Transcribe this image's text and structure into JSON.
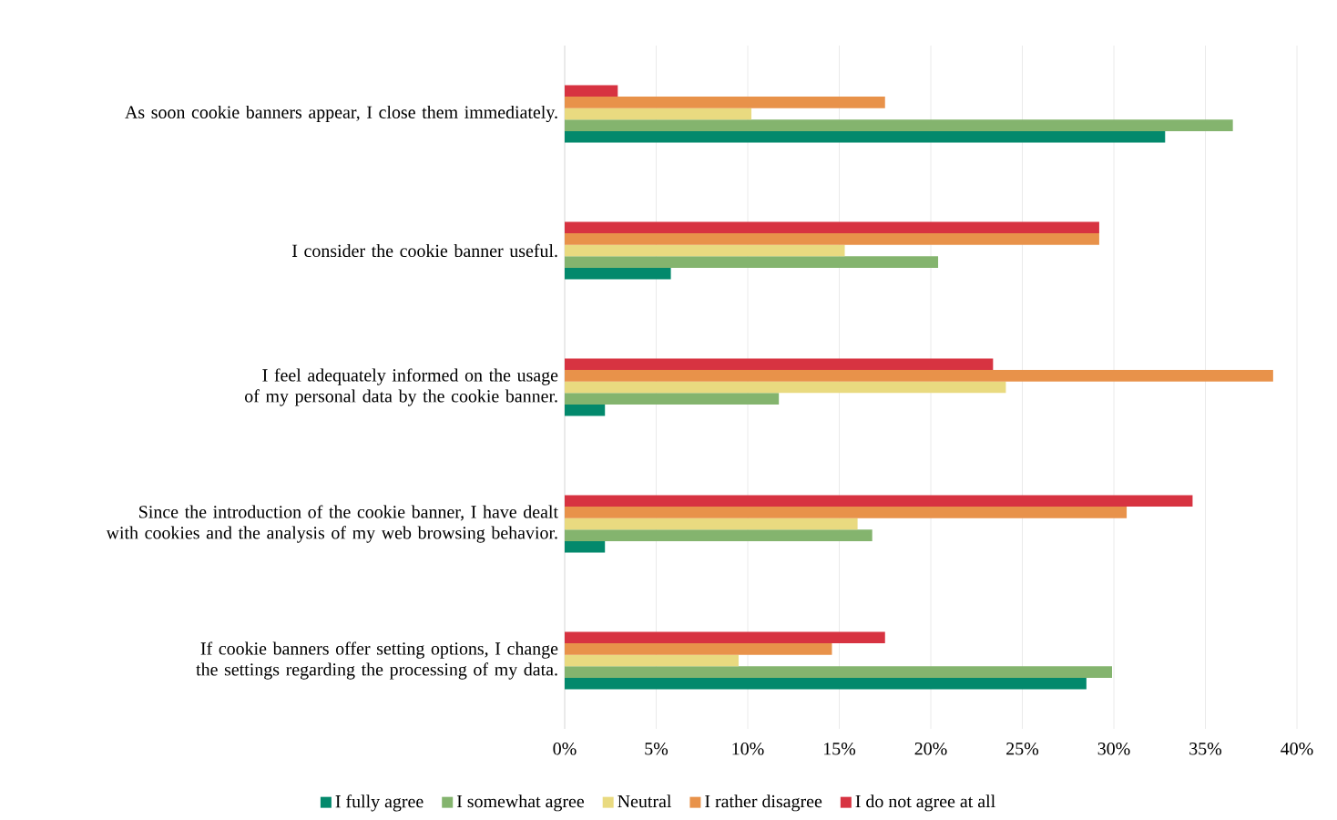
{
  "chart_data": {
    "type": "bar",
    "orientation": "horizontal",
    "categories": [
      "As soon cookie banners appear, I close them immediately.",
      "I consider the cookie banner useful.",
      "I feel adequately informed on the usage of my personal data by the cookie banner.",
      "Since the introduction of the cookie banner, I have dealt with cookies and the analysis of my web browsing behavior.",
      "If cookie banners offer setting options, I change the settings regarding the processing of my data."
    ],
    "series": [
      {
        "name": "I fully agree",
        "color": "#03896c",
        "values": [
          32.8,
          5.8,
          2.2,
          2.2,
          28.5
        ]
      },
      {
        "name": "I somewhat agree",
        "color": "#84b46e",
        "values": [
          36.5,
          20.4,
          11.7,
          16.8,
          29.9
        ]
      },
      {
        "name": "Neutral",
        "color": "#e9da80",
        "values": [
          10.2,
          15.3,
          24.1,
          16.0,
          9.5
        ]
      },
      {
        "name": "I rather disagree",
        "color": "#e8924a",
        "values": [
          17.5,
          29.2,
          38.7,
          30.7,
          14.6
        ]
      },
      {
        "name": "I do not agree at all",
        "color": "#d73341",
        "values": [
          2.9,
          29.2,
          23.4,
          34.3,
          17.5
        ]
      }
    ],
    "xlim": [
      0,
      40
    ],
    "xticks": [
      {
        "value": 0,
        "label": "0%"
      },
      {
        "value": 5,
        "label": "5%"
      },
      {
        "value": 10,
        "label": "10%"
      },
      {
        "value": 15,
        "label": "15%"
      },
      {
        "value": 20,
        "label": "20%"
      },
      {
        "value": 25,
        "label": "25%"
      },
      {
        "value": 30,
        "label": "30%"
      },
      {
        "value": 35,
        "label": "35%"
      },
      {
        "value": 40,
        "label": "40%"
      }
    ],
    "grid": "x",
    "legend": "bottom"
  }
}
